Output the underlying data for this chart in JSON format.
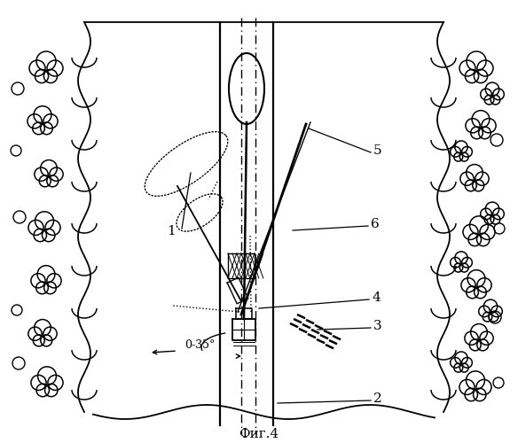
{
  "fig_label": "Фиг.4",
  "background_color": "#ffffff",
  "line_color": "#000000",
  "angle_label": "0-35°"
}
